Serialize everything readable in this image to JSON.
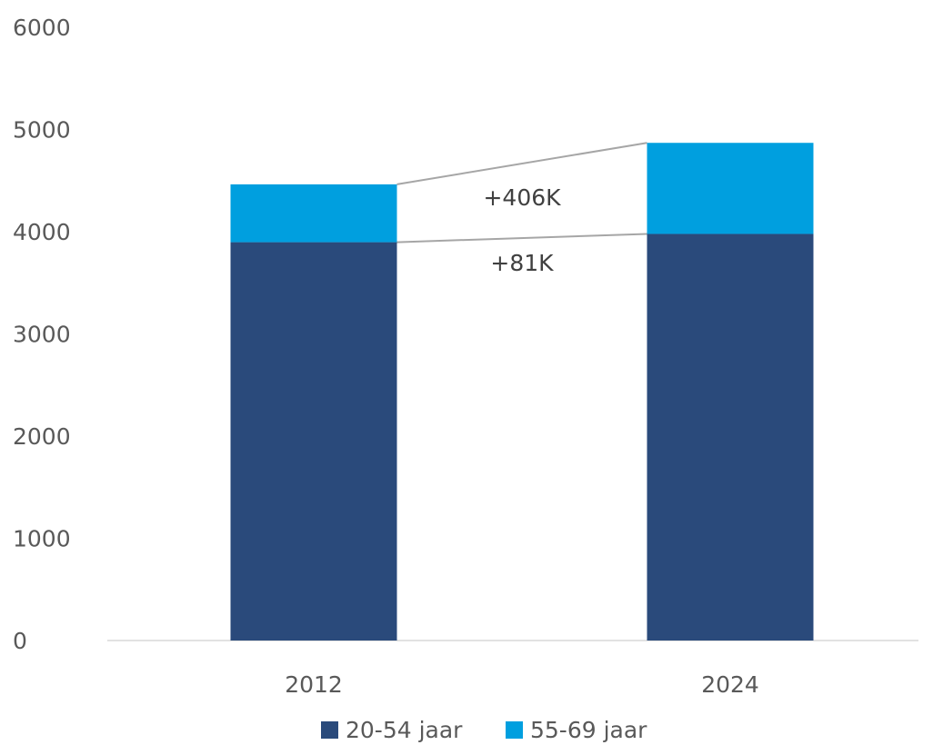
{
  "chart_data": {
    "type": "bar",
    "stacked": true,
    "categories": [
      "2012",
      "2024"
    ],
    "series": [
      {
        "name": "20-54 jaar",
        "values": [
          3897,
          3978
        ],
        "color": "#2a4a7b"
      },
      {
        "name": "55-69 jaar",
        "values": [
          566,
          891
        ],
        "color": "#009fdf"
      }
    ],
    "ylim": [
      0,
      6000
    ],
    "yticks": [
      0,
      1000,
      2000,
      3000,
      4000,
      5000,
      6000
    ],
    "grid": false,
    "legend": "bottom",
    "annotations": [
      {
        "text": "+406K",
        "between": "totals"
      },
      {
        "text": "+81K",
        "between": "20-54 jaar"
      }
    ]
  }
}
